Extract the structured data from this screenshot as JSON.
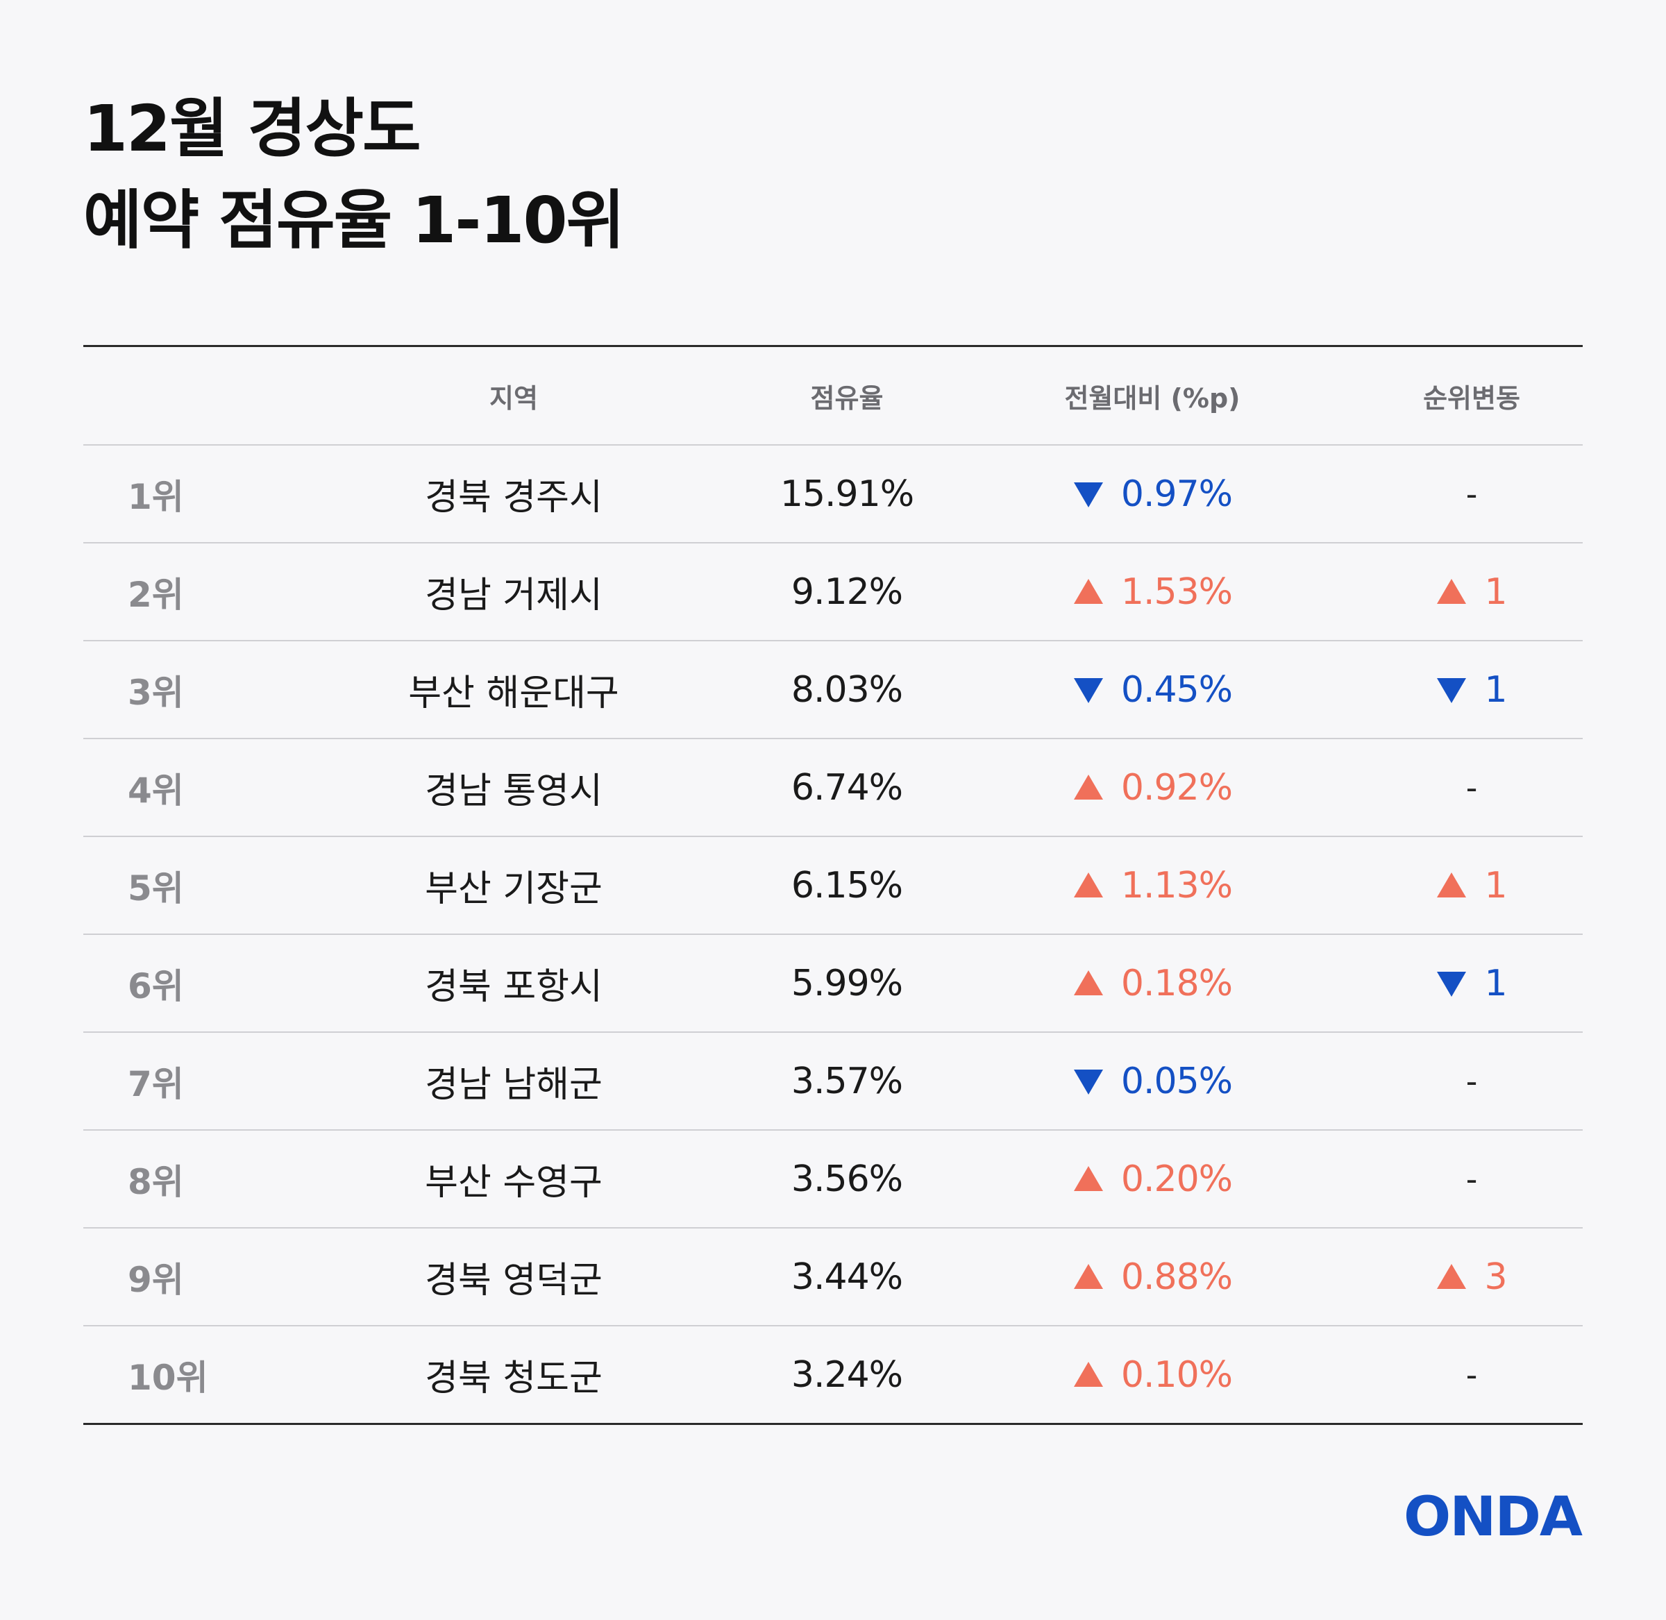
{
  "title": {
    "line1": "12월 경상도",
    "line2": "예약 점유율 1-10위"
  },
  "columns": {
    "region": "지역",
    "share": "점유율",
    "change": "전월대비 (%p)",
    "rank_change": "순위변동"
  },
  "colors": {
    "up": "#f0705a",
    "down": "#1450c4",
    "brand": "#1450c4"
  },
  "rows": [
    {
      "rank": "1위",
      "region": "경북 경주시",
      "share": "15.91%",
      "change": "0.97%",
      "change_dir": "down",
      "rank_change": "-",
      "rank_dir": "none"
    },
    {
      "rank": "2위",
      "region": "경남 거제시",
      "share": "9.12%",
      "change": "1.53%",
      "change_dir": "up",
      "rank_change": "1",
      "rank_dir": "up"
    },
    {
      "rank": "3위",
      "region": "부산 해운대구",
      "share": "8.03%",
      "change": "0.45%",
      "change_dir": "down",
      "rank_change": "1",
      "rank_dir": "down"
    },
    {
      "rank": "4위",
      "region": "경남 통영시",
      "share": "6.74%",
      "change": "0.92%",
      "change_dir": "up",
      "rank_change": "-",
      "rank_dir": "none"
    },
    {
      "rank": "5위",
      "region": "부산 기장군",
      "share": "6.15%",
      "change": "1.13%",
      "change_dir": "up",
      "rank_change": "1",
      "rank_dir": "up"
    },
    {
      "rank": "6위",
      "region": "경북 포항시",
      "share": "5.99%",
      "change": "0.18%",
      "change_dir": "up",
      "rank_change": "1",
      "rank_dir": "down"
    },
    {
      "rank": "7위",
      "region": "경남 남해군",
      "share": "3.57%",
      "change": "0.05%",
      "change_dir": "down",
      "rank_change": "-",
      "rank_dir": "none"
    },
    {
      "rank": "8위",
      "region": "부산 수영구",
      "share": "3.56%",
      "change": "0.20%",
      "change_dir": "up",
      "rank_change": "-",
      "rank_dir": "none"
    },
    {
      "rank": "9위",
      "region": "경북 영덕군",
      "share": "3.44%",
      "change": "0.88%",
      "change_dir": "up",
      "rank_change": "3",
      "rank_dir": "up"
    },
    {
      "rank": "10위",
      "region": "경북 청도군",
      "share": "3.24%",
      "change": "0.10%",
      "change_dir": "up",
      "rank_change": "-",
      "rank_dir": "none"
    }
  ],
  "chart_data": {
    "type": "table",
    "title": "12월 경상도 예약 점유율 1-10위",
    "columns": [
      "",
      "지역",
      "점유율",
      "전월대비 (%p)",
      "순위변동"
    ],
    "rows": [
      [
        "1위",
        "경북 경주시",
        "15.91%",
        "▼ 0.97%",
        "-"
      ],
      [
        "2위",
        "경남 거제시",
        "9.12%",
        "▲ 1.53%",
        "▲ 1"
      ],
      [
        "3위",
        "부산 해운대구",
        "8.03%",
        "▼ 0.45%",
        "▼ 1"
      ],
      [
        "4위",
        "경남 통영시",
        "6.74%",
        "▲ 0.92%",
        "-"
      ],
      [
        "5위",
        "부산 기장군",
        "6.15%",
        "▲ 1.13%",
        "▲ 1"
      ],
      [
        "6위",
        "경북 포항시",
        "5.99%",
        "▲ 0.18%",
        "▼ 1"
      ],
      [
        "7위",
        "경남 남해군",
        "3.57%",
        "▼ 0.05%",
        "-"
      ],
      [
        "8위",
        "부산 수영구",
        "3.56%",
        "▲ 0.20%",
        "-"
      ],
      [
        "9위",
        "경북 영덕군",
        "3.44%",
        "▲ 0.88%",
        "▲ 3"
      ],
      [
        "10위",
        "경북 청도군",
        "3.24%",
        "▲ 0.10%",
        "-"
      ]
    ]
  },
  "brand": {
    "logo_text": "ONDA",
    "logo_icon": "onda-logo"
  }
}
